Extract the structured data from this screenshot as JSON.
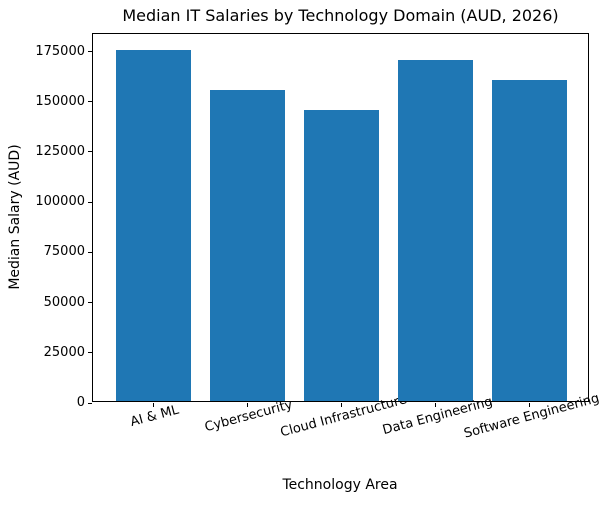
{
  "chart_data": {
    "type": "bar",
    "title": "Median IT Salaries by Technology Domain (AUD, 2026)",
    "xlabel": "Technology Area",
    "ylabel": "Median Salary (AUD)",
    "categories": [
      "AI & ML",
      "Cybersecurity",
      "Cloud Infrastructure",
      "Data Engineering",
      "Software Engineering"
    ],
    "values": [
      175000,
      155000,
      145000,
      170000,
      160000
    ],
    "yticks": [
      0,
      25000,
      50000,
      75000,
      100000,
      125000,
      150000,
      175000
    ],
    "ylim": [
      0,
      183750
    ],
    "bar_color": "#1f77b4",
    "axis_color": "#000000",
    "text_color": "#000000",
    "grid": false,
    "legend": "none",
    "x_tick_rotation_deg": 15
  }
}
